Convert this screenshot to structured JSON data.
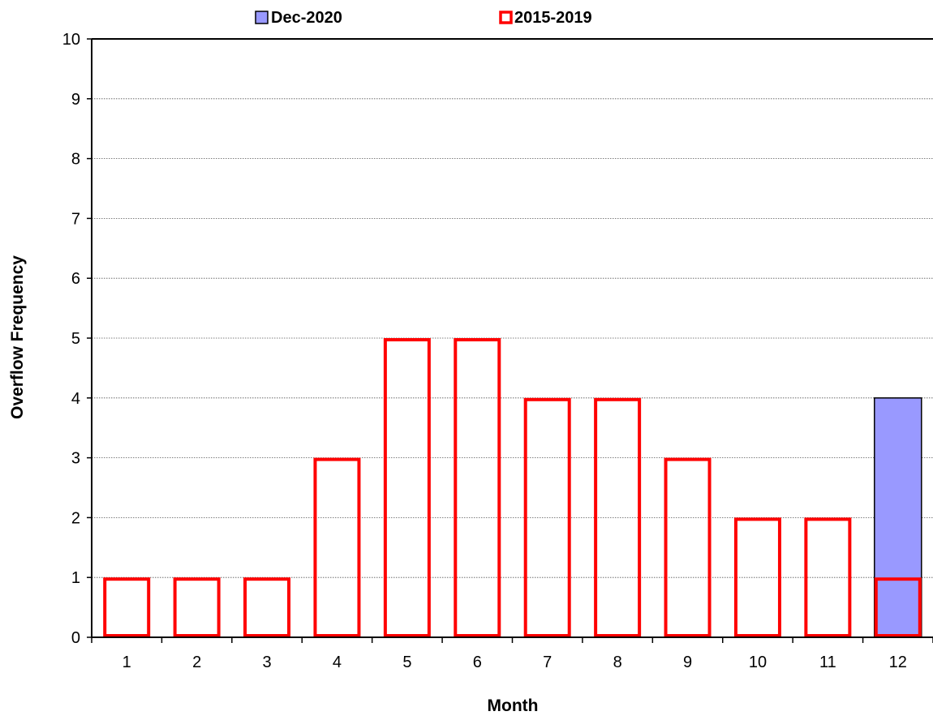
{
  "chart_data": {
    "type": "bar",
    "xlabel": "Month",
    "ylabel": "Overflow Frequency",
    "ylim": [
      0,
      10
    ],
    "yticks": [
      "0",
      "1",
      "2",
      "3",
      "4",
      "5",
      "6",
      "7",
      "8",
      "9",
      "10"
    ],
    "categories": [
      "1",
      "2",
      "3",
      "4",
      "5",
      "6",
      "7",
      "8",
      "9",
      "10",
      "11",
      "12"
    ],
    "grid": true,
    "legend_position": "top",
    "series": [
      {
        "name": "Dec-2020",
        "style": "filled",
        "color": "#9999ff",
        "values": [
          null,
          null,
          null,
          null,
          null,
          null,
          null,
          null,
          null,
          null,
          null,
          4
        ]
      },
      {
        "name": "2015-2019",
        "style": "outline",
        "color": "#ff0000",
        "values": [
          1,
          1,
          1,
          3,
          5,
          5,
          4,
          4,
          3,
          2,
          2,
          1
        ]
      }
    ]
  }
}
